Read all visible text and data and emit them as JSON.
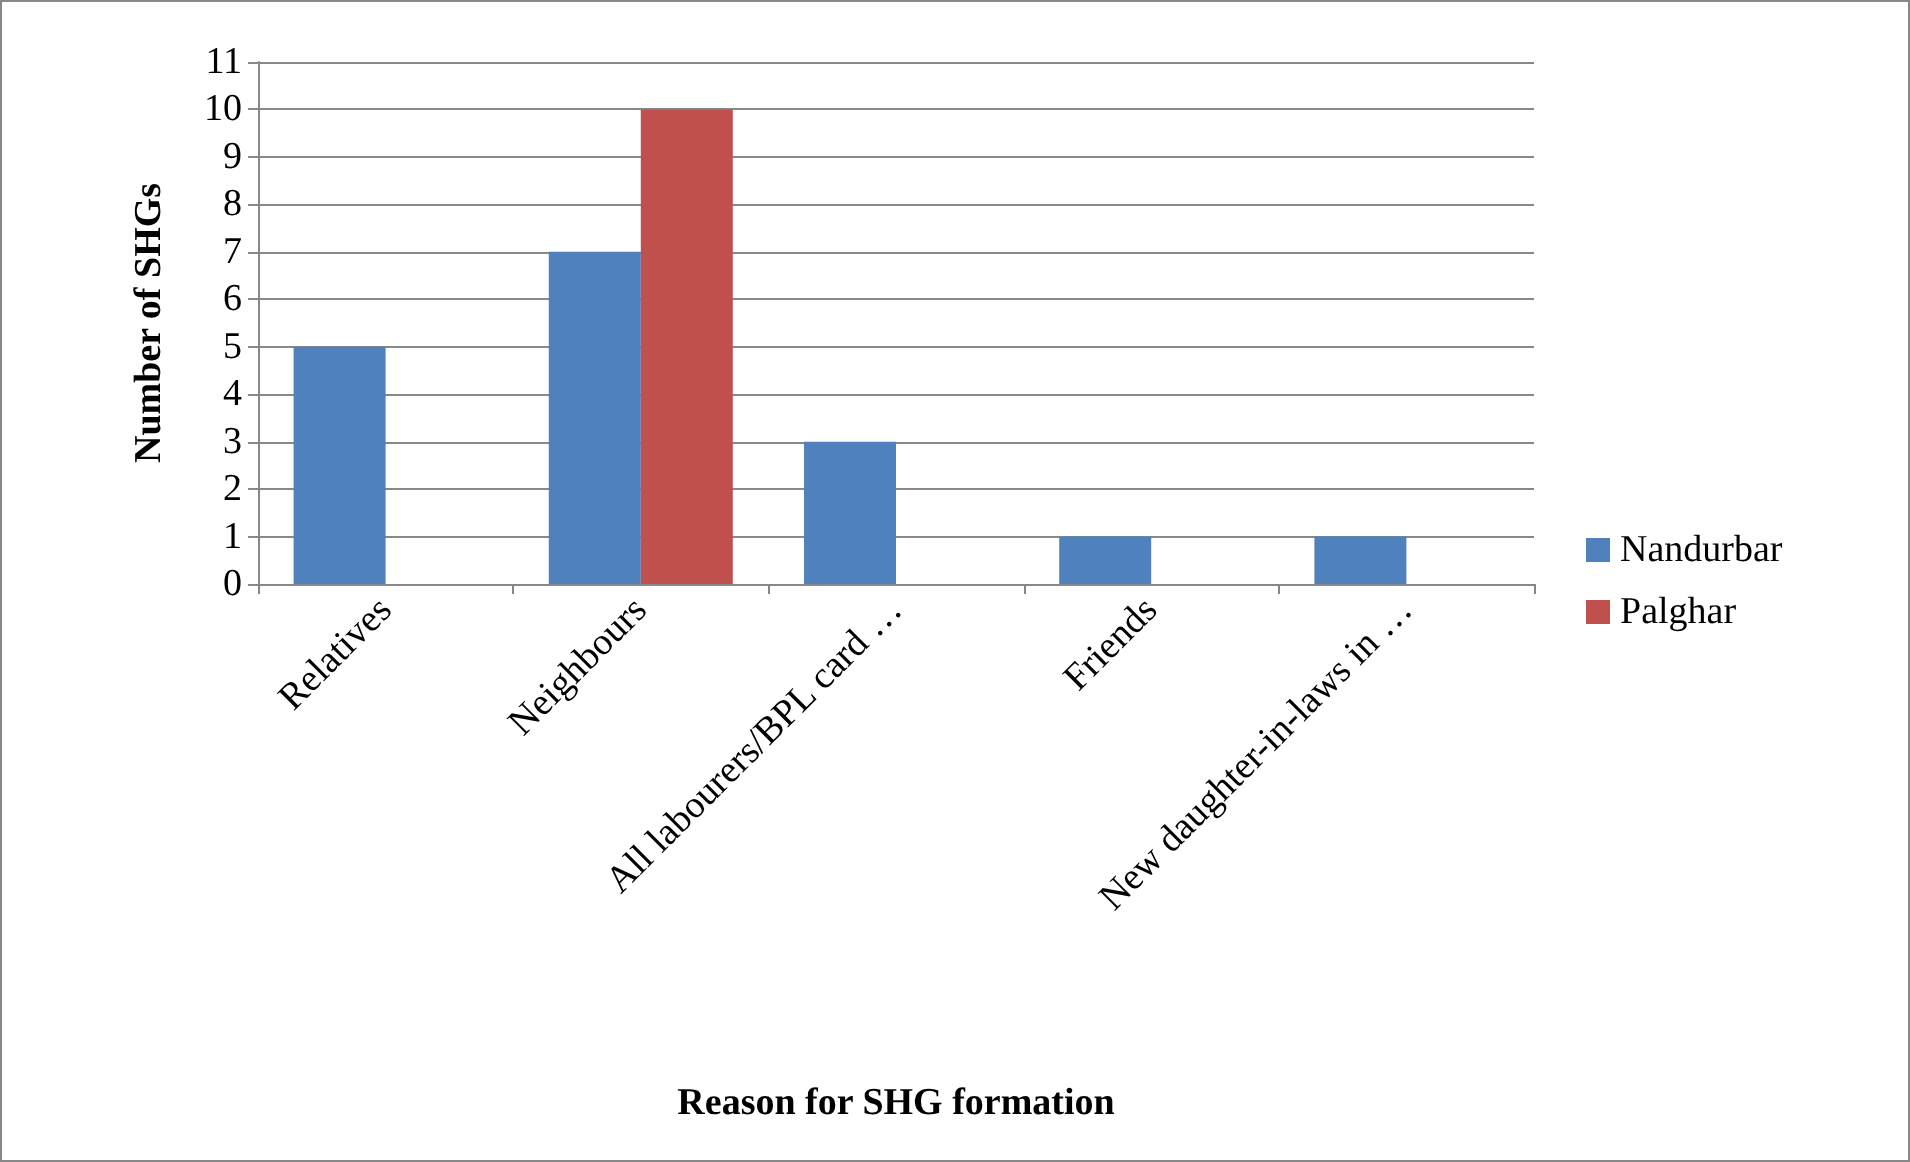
{
  "chart_data": {
    "type": "bar",
    "xlabel": "Reason for SHG formation",
    "ylabel": "Number of SHGs",
    "categories": [
      "Relatives",
      "Neighbours",
      "All labourers/BPL card …",
      "Friends",
      "New daughter-in-laws in …"
    ],
    "series": [
      {
        "name": "Nandurbar",
        "color": "#4f81bd",
        "values": [
          5,
          7,
          3,
          1,
          1
        ]
      },
      {
        "name": "Palghar",
        "color": "#c0504d",
        "values": [
          null,
          10,
          null,
          null,
          null
        ]
      }
    ],
    "ylim": [
      0,
      11
    ],
    "yticks": [
      0,
      1,
      2,
      3,
      4,
      5,
      6,
      7,
      8,
      9,
      10,
      11
    ],
    "grid": "y",
    "legend": "right"
  }
}
